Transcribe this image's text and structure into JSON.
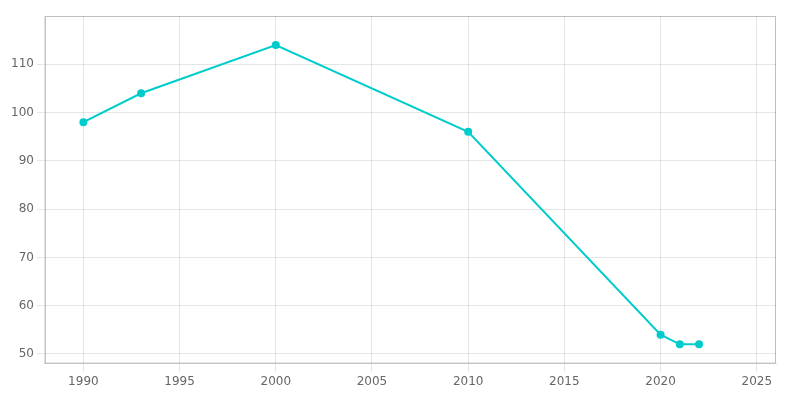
{
  "chart_data": {
    "type": "line",
    "x": [
      1990,
      1993,
      2000,
      2010,
      2020,
      2021,
      2022
    ],
    "values": [
      98,
      104,
      114,
      96,
      54,
      52,
      52
    ],
    "color": "#00CCCC",
    "marker": "circle",
    "xlim": [
      1988,
      2026
    ],
    "xticks": [
      1990,
      1995,
      2000,
      2005,
      2010,
      2015,
      2020,
      2025
    ],
    "ylim": [
      48,
      120
    ],
    "yticks": [
      50,
      60,
      70,
      80,
      90,
      100,
      110
    ],
    "grid": true
  }
}
